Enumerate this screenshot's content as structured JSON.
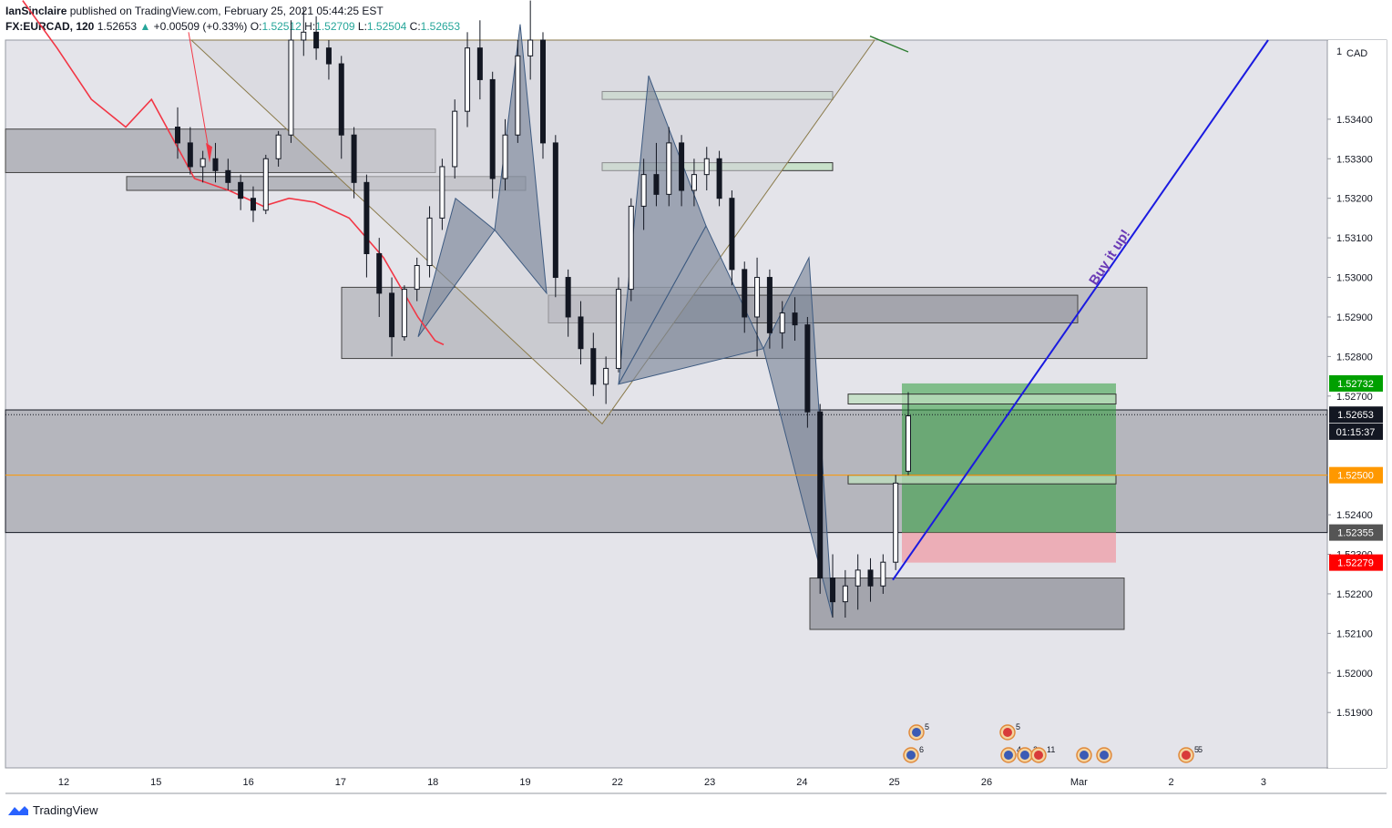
{
  "header": {
    "author": "IanSinclaire",
    "published_text": "published on TradingView.com, February 25, 2021 05:44:25 EST",
    "symbol": "FX:EURCAD, 120",
    "last": "1.52653",
    "change": "+0.00509 (+0.33%)",
    "o_label": "O:",
    "o_value": "1.52512",
    "h_label": "H:",
    "h_value": "1.52709",
    "l_label": "L:",
    "l_value": "1.52504",
    "c_label": "C:",
    "c_value": "1.52653"
  },
  "footer": {
    "brand": "TradingView"
  },
  "chart_data": {
    "type": "candlestick",
    "currency_label": "CAD",
    "axis_top_label": "1",
    "y_ticks": [
      "1.53400",
      "1.53300",
      "1.53200",
      "1.53100",
      "1.53000",
      "1.52900",
      "1.52800",
      "1.52700",
      "1.52400",
      "1.52300",
      "1.52200",
      "1.52100",
      "1.52000",
      "1.51900"
    ],
    "y_tick_values": [
      1.534,
      1.533,
      1.532,
      1.531,
      1.53,
      1.529,
      1.528,
      1.527,
      1.524,
      1.523,
      1.522,
      1.521,
      1.52,
      1.519
    ],
    "ylim": [
      1.5176,
      1.536
    ],
    "x_ticks": [
      "12",
      "15",
      "16",
      "17",
      "18",
      "19",
      "22",
      "23",
      "24",
      "25",
      "26",
      "Mar",
      "2",
      "3"
    ],
    "price_labels": [
      {
        "text": "1.52732",
        "value": 1.52732,
        "color": "#00a000"
      },
      {
        "text": "1.52653",
        "value": 1.52653,
        "color": "#131722"
      },
      {
        "text": "01:15:37",
        "value": 1.5261,
        "color": "#131722"
      },
      {
        "text": "1.52500",
        "value": 1.525,
        "color": "#ff9800"
      },
      {
        "text": "1.52355",
        "value": 1.52355,
        "color": "#555555"
      },
      {
        "text": "1.52279",
        "value": 1.52279,
        "color": "#ff0000"
      }
    ],
    "annotation": "Buy it up!",
    "event_badges": [
      "5",
      "6",
      "5",
      "4",
      "2",
      "11",
      "5",
      "5"
    ],
    "moving_average": [
      [
        0.02,
        1.537
      ],
      [
        0.06,
        1.5358
      ],
      [
        0.1,
        1.5345
      ],
      [
        0.14,
        1.5338
      ],
      [
        0.17,
        1.5345
      ],
      [
        0.22,
        1.5325
      ],
      [
        0.26,
        1.5322
      ],
      [
        0.3,
        1.5318
      ],
      [
        0.33,
        1.532
      ],
      [
        0.36,
        1.5319
      ],
      [
        0.4,
        1.5315
      ],
      [
        0.44,
        1.5305
      ],
      [
        0.48,
        1.529
      ],
      [
        0.5,
        1.5284
      ],
      [
        0.51,
        1.5283
      ]
    ],
    "moving_average_2": [
      [
        0.94,
        1.5361
      ],
      [
        1.0,
        1.5357
      ]
    ],
    "candles": [
      [
        1.5338,
        1.5343,
        1.533,
        1.5334
      ],
      [
        1.5334,
        1.5338,
        1.5326,
        1.5328
      ],
      [
        1.5328,
        1.5332,
        1.5324,
        1.533
      ],
      [
        1.533,
        1.5334,
        1.5324,
        1.5327
      ],
      [
        1.5327,
        1.533,
        1.5322,
        1.5324
      ],
      [
        1.5324,
        1.5326,
        1.5317,
        1.532
      ],
      [
        1.532,
        1.5323,
        1.5314,
        1.5317
      ],
      [
        1.5317,
        1.5331,
        1.5316,
        1.533
      ],
      [
        1.533,
        1.5337,
        1.5328,
        1.5336
      ],
      [
        1.5336,
        1.5365,
        1.5334,
        1.536
      ],
      [
        1.536,
        1.5368,
        1.5356,
        1.5362
      ],
      [
        1.5362,
        1.5366,
        1.5355,
        1.5358
      ],
      [
        1.5358,
        1.536,
        1.535,
        1.5354
      ],
      [
        1.5354,
        1.5356,
        1.533,
        1.5336
      ],
      [
        1.5336,
        1.5338,
        1.532,
        1.5324
      ],
      [
        1.5324,
        1.5326,
        1.53,
        1.5306
      ],
      [
        1.5306,
        1.531,
        1.529,
        1.5296
      ],
      [
        1.5296,
        1.53,
        1.528,
        1.5285
      ],
      [
        1.5285,
        1.5298,
        1.5284,
        1.5297
      ],
      [
        1.5297,
        1.5305,
        1.5294,
        1.5303
      ],
      [
        1.5303,
        1.5318,
        1.53,
        1.5315
      ],
      [
        1.5315,
        1.533,
        1.5312,
        1.5328
      ],
      [
        1.5328,
        1.5345,
        1.5325,
        1.5342
      ],
      [
        1.5342,
        1.5362,
        1.5338,
        1.5358
      ],
      [
        1.5358,
        1.5365,
        1.5345,
        1.535
      ],
      [
        1.535,
        1.5352,
        1.532,
        1.5325
      ],
      [
        1.5325,
        1.534,
        1.5322,
        1.5336
      ],
      [
        1.5336,
        1.536,
        1.5334,
        1.5356
      ],
      [
        1.5356,
        1.537,
        1.535,
        1.536
      ],
      [
        1.536,
        1.5362,
        1.533,
        1.5334
      ],
      [
        1.5334,
        1.5336,
        1.5295,
        1.53
      ],
      [
        1.53,
        1.5302,
        1.5285,
        1.529
      ],
      [
        1.529,
        1.5294,
        1.5278,
        1.5282
      ],
      [
        1.5282,
        1.5286,
        1.527,
        1.5273
      ],
      [
        1.5273,
        1.528,
        1.5268,
        1.5277
      ],
      [
        1.5277,
        1.53,
        1.5276,
        1.5297
      ],
      [
        1.5297,
        1.532,
        1.5294,
        1.5318
      ],
      [
        1.5318,
        1.533,
        1.5312,
        1.5326
      ],
      [
        1.5326,
        1.5334,
        1.5318,
        1.5321
      ],
      [
        1.5321,
        1.5338,
        1.5318,
        1.5334
      ],
      [
        1.5334,
        1.5336,
        1.5318,
        1.5322
      ],
      [
        1.5322,
        1.533,
        1.5318,
        1.5326
      ],
      [
        1.5326,
        1.5333,
        1.5322,
        1.533
      ],
      [
        1.533,
        1.5332,
        1.5318,
        1.532
      ],
      [
        1.532,
        1.5322,
        1.5298,
        1.5302
      ],
      [
        1.5302,
        1.5304,
        1.5286,
        1.529
      ],
      [
        1.529,
        1.5305,
        1.528,
        1.53
      ],
      [
        1.53,
        1.5302,
        1.5282,
        1.5286
      ],
      [
        1.5286,
        1.5294,
        1.5282,
        1.5291
      ],
      [
        1.5291,
        1.5295,
        1.5284,
        1.5288
      ],
      [
        1.5288,
        1.529,
        1.5262,
        1.5266
      ],
      [
        1.5266,
        1.5268,
        1.522,
        1.5224
      ],
      [
        1.5224,
        1.523,
        1.5214,
        1.5218
      ],
      [
        1.5218,
        1.5226,
        1.5214,
        1.5222
      ],
      [
        1.5222,
        1.523,
        1.5216,
        1.5226
      ],
      [
        1.5226,
        1.5229,
        1.5218,
        1.5222
      ],
      [
        1.5222,
        1.523,
        1.522,
        1.5228
      ],
      [
        1.5228,
        1.525,
        1.5226,
        1.5248
      ],
      [
        1.5251,
        1.5271,
        1.525,
        1.5265
      ]
    ]
  }
}
